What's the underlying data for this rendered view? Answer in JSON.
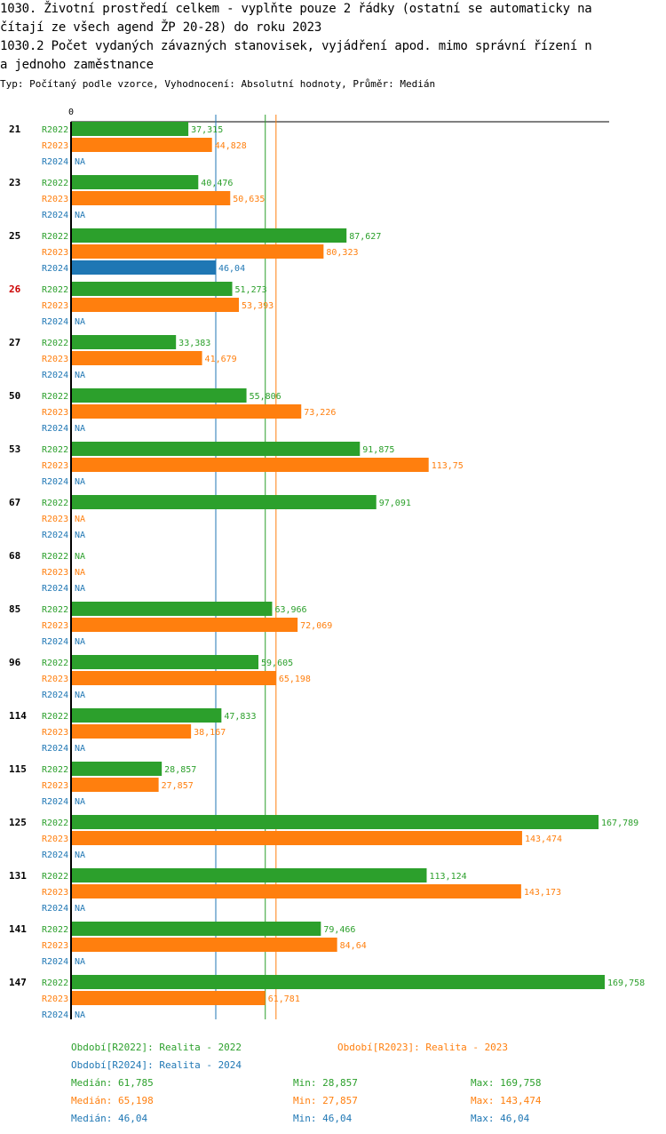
{
  "header": {
    "line1": "1030. Životní prostředí celkem - vyplňte pouze 2 řádky (ostatní se automaticky na",
    "line2": "čítají ze všech agend ŽP 20-28) do roku 2023",
    "line3": "1030.2 Počet vydaných závazných stanovisek, vyjádření apod. mimo správní řízení n",
    "line4": "a jednoho zaměstnance",
    "subtitle": "Typ: Počítaný podle vzorce, Vyhodnocení: Absolutní hodnoty, Průměr: Medián"
  },
  "colors": {
    "R2022": "#2ca02c",
    "R2023": "#ff7f0e",
    "R2024": "#1f77b4",
    "highlight": "#cc0000"
  },
  "chart_data": {
    "type": "bar",
    "orientation": "horizontal",
    "axis_zero_label": "0",
    "xlim": [
      0,
      169.758
    ],
    "series_names": [
      "R2022",
      "R2023",
      "R2024"
    ],
    "highlight_category": "26",
    "categories": [
      {
        "id": "21",
        "values": [
          37.315,
          44.828,
          null
        ],
        "labels": [
          "37,315",
          "44,828",
          "NA"
        ]
      },
      {
        "id": "23",
        "values": [
          40.476,
          50.635,
          null
        ],
        "labels": [
          "40,476",
          "50,635",
          "NA"
        ]
      },
      {
        "id": "25",
        "values": [
          87.627,
          80.323,
          46.04
        ],
        "labels": [
          "87,627",
          "80,323",
          "46,04"
        ]
      },
      {
        "id": "26",
        "values": [
          51.273,
          53.393,
          null
        ],
        "labels": [
          "51,273",
          "53,393",
          "NA"
        ]
      },
      {
        "id": "27",
        "values": [
          33.383,
          41.679,
          null
        ],
        "labels": [
          "33,383",
          "41,679",
          "NA"
        ]
      },
      {
        "id": "50",
        "values": [
          55.806,
          73.226,
          null
        ],
        "labels": [
          "55,806",
          "73,226",
          "NA"
        ]
      },
      {
        "id": "53",
        "values": [
          91.875,
          113.75,
          null
        ],
        "labels": [
          "91,875",
          "113,75",
          "NA"
        ]
      },
      {
        "id": "67",
        "values": [
          97.091,
          null,
          null
        ],
        "labels": [
          "97,091",
          "NA",
          "NA"
        ]
      },
      {
        "id": "68",
        "values": [
          null,
          null,
          null
        ],
        "labels": [
          "NA",
          "NA",
          "NA"
        ]
      },
      {
        "id": "85",
        "values": [
          63.966,
          72.069,
          null
        ],
        "labels": [
          "63,966",
          "72,069",
          "NA"
        ]
      },
      {
        "id": "96",
        "values": [
          59.605,
          65.198,
          null
        ],
        "labels": [
          "59,605",
          "65,198",
          "NA"
        ]
      },
      {
        "id": "114",
        "values": [
          47.833,
          38.167,
          null
        ],
        "labels": [
          "47,833",
          "38,167",
          "NA"
        ]
      },
      {
        "id": "115",
        "values": [
          28.857,
          27.857,
          null
        ],
        "labels": [
          "28,857",
          "27,857",
          "NA"
        ]
      },
      {
        "id": "125",
        "values": [
          167.789,
          143.474,
          null
        ],
        "labels": [
          "167,789",
          "143,474",
          "NA"
        ]
      },
      {
        "id": "131",
        "values": [
          113.124,
          143.173,
          null
        ],
        "labels": [
          "113,124",
          "143,173",
          "NA"
        ]
      },
      {
        "id": "141",
        "values": [
          79.466,
          84.64,
          null
        ],
        "labels": [
          "79,466",
          "84,64",
          "NA"
        ]
      },
      {
        "id": "147",
        "values": [
          169.758,
          61.781,
          null
        ],
        "labels": [
          "169,758",
          "61,781",
          "NA"
        ]
      }
    ],
    "medians": {
      "R2022": 61.785,
      "R2023": 65.198,
      "R2024": 46.04
    }
  },
  "legend": {
    "r2022": "Období[R2022]: Realita - 2022",
    "r2023": "Období[R2023]: Realita - 2023",
    "r2024": "Období[R2024]: Realita - 2024"
  },
  "stats": {
    "r2022": {
      "median": "Medián: 61,785",
      "min": "Min: 28,857",
      "max": "Max: 169,758"
    },
    "r2023": {
      "median": "Medián: 65,198",
      "min": "Min: 27,857",
      "max": "Max: 143,474"
    },
    "r2024": {
      "median": "Medián: 46,04",
      "min": "Min: 46,04",
      "max": "Max: 46,04"
    }
  }
}
